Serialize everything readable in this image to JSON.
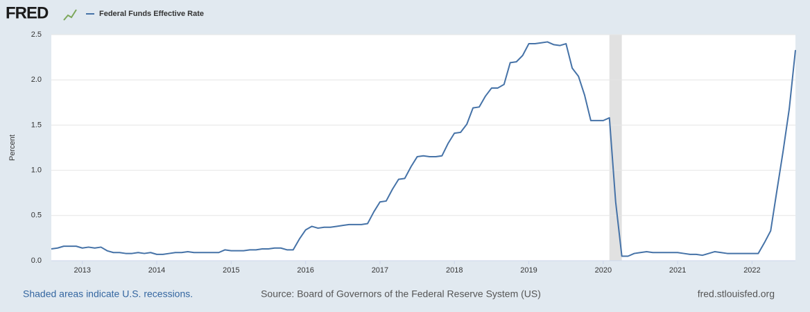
{
  "chart_data": {
    "type": "line",
    "logo": "FRED",
    "ylabel": "Percent",
    "footer_left": "Shaded areas indicate U.S. recessions.",
    "footer_center": "Source: Board of Governors of the Federal Reserve System (US)",
    "footer_right": "fred.stlouisfed.org",
    "x": [
      2012.583,
      2012.667,
      2012.75,
      2012.833,
      2012.917,
      2013.0,
      2013.083,
      2013.167,
      2013.25,
      2013.333,
      2013.417,
      2013.5,
      2013.583,
      2013.667,
      2013.75,
      2013.833,
      2013.917,
      2014.0,
      2014.083,
      2014.167,
      2014.25,
      2014.333,
      2014.417,
      2014.5,
      2014.583,
      2014.667,
      2014.75,
      2014.833,
      2014.917,
      2015.0,
      2015.083,
      2015.167,
      2015.25,
      2015.333,
      2015.417,
      2015.5,
      2015.583,
      2015.667,
      2015.75,
      2015.833,
      2015.917,
      2016.0,
      2016.083,
      2016.167,
      2016.25,
      2016.333,
      2016.417,
      2016.5,
      2016.583,
      2016.667,
      2016.75,
      2016.833,
      2016.917,
      2017.0,
      2017.083,
      2017.167,
      2017.25,
      2017.333,
      2017.417,
      2017.5,
      2017.583,
      2017.667,
      2017.75,
      2017.833,
      2017.917,
      2018.0,
      2018.083,
      2018.167,
      2018.25,
      2018.333,
      2018.417,
      2018.5,
      2018.583,
      2018.667,
      2018.75,
      2018.833,
      2018.917,
      2019.0,
      2019.083,
      2019.167,
      2019.25,
      2019.333,
      2019.417,
      2019.5,
      2019.583,
      2019.667,
      2019.75,
      2019.833,
      2019.917,
      2020.0,
      2020.083,
      2020.167,
      2020.25,
      2020.333,
      2020.417,
      2020.5,
      2020.583,
      2020.667,
      2020.75,
      2020.833,
      2020.917,
      2021.0,
      2021.083,
      2021.167,
      2021.25,
      2021.333,
      2021.417,
      2021.5,
      2021.583,
      2021.667,
      2021.75,
      2021.833,
      2021.917,
      2022.0,
      2022.083,
      2022.167,
      2022.25,
      2022.333,
      2022.417,
      2022.5,
      2022.583
    ],
    "series": [
      {
        "name": "Federal Funds Effective Rate",
        "color": "#4572a7",
        "values": [
          0.13,
          0.14,
          0.16,
          0.16,
          0.16,
          0.14,
          0.15,
          0.14,
          0.15,
          0.11,
          0.09,
          0.09,
          0.08,
          0.08,
          0.09,
          0.08,
          0.09,
          0.07,
          0.07,
          0.08,
          0.09,
          0.09,
          0.1,
          0.09,
          0.09,
          0.09,
          0.09,
          0.09,
          0.12,
          0.11,
          0.11,
          0.11,
          0.12,
          0.12,
          0.13,
          0.13,
          0.14,
          0.14,
          0.12,
          0.12,
          0.24,
          0.34,
          0.38,
          0.36,
          0.37,
          0.37,
          0.38,
          0.39,
          0.4,
          0.4,
          0.4,
          0.41,
          0.54,
          0.65,
          0.66,
          0.79,
          0.9,
          0.91,
          1.04,
          1.15,
          1.16,
          1.15,
          1.15,
          1.16,
          1.3,
          1.41,
          1.42,
          1.51,
          1.69,
          1.7,
          1.82,
          1.91,
          1.91,
          1.95,
          2.19,
          2.2,
          2.27,
          2.4,
          2.4,
          2.41,
          2.42,
          2.39,
          2.38,
          2.4,
          2.13,
          2.04,
          1.83,
          1.55,
          1.55,
          1.55,
          1.58,
          0.65,
          0.05,
          0.05,
          0.08,
          0.09,
          0.1,
          0.09,
          0.09,
          0.09,
          0.09,
          0.09,
          0.08,
          0.07,
          0.07,
          0.06,
          0.08,
          0.1,
          0.09,
          0.08,
          0.08,
          0.08,
          0.08,
          0.08,
          0.08,
          0.2,
          0.33,
          0.77,
          1.21,
          1.68,
          2.33
        ]
      }
    ],
    "recessions": [
      {
        "start": 2020.083,
        "end": 2020.25
      }
    ],
    "recession_color": "#e1e1e1",
    "xlim": [
      2012.583,
      2022.583
    ],
    "xticks": [
      2013,
      2014,
      2015,
      2016,
      2017,
      2018,
      2019,
      2020,
      2021,
      2022
    ],
    "ylim": [
      0,
      2.5
    ],
    "yticks": [
      {
        "value": 0,
        "label": "0.0"
      },
      {
        "value": 0.5,
        "label": "0.5"
      },
      {
        "value": 1,
        "label": "1.0"
      },
      {
        "value": 1.5,
        "label": "1.5"
      },
      {
        "value": 2,
        "label": "2.0"
      },
      {
        "value": 2.5,
        "label": "2.5"
      }
    ],
    "grid": true
  }
}
